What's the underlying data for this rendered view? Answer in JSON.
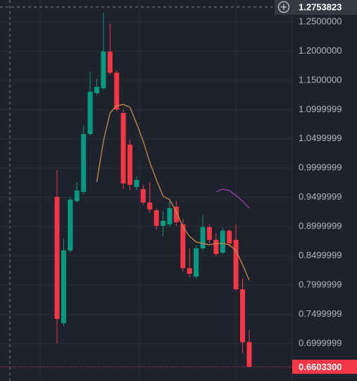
{
  "chart_data": {
    "type": "candlestick",
    "up_color": "#089981",
    "down_color": "#f23645",
    "grid": true,
    "ylim": [
      0.636,
      1.2874
    ],
    "yticks": [
      {
        "value": 1.25,
        "label": "1.2500000"
      },
      {
        "value": 1.2,
        "label": "1.2000000"
      },
      {
        "value": 1.15,
        "label": "1.1500000"
      },
      1.0999999,
      1.0499999,
      0.9999999,
      0.9499999,
      0.8999999,
      0.8499999,
      0.7999999,
      0.7499999,
      0.6999999
    ],
    "open": [
      0.9508,
      0.7349,
      0.8592,
      0.9436,
      0.9593,
      1.0582,
      1.1282,
      1.1366,
      1.1993,
      1.1631,
      1.0944,
      1.0401,
      0.9677,
      0.9641,
      0.9412,
      0.9279,
      0.9014,
      0.9038,
      0.934,
      0.9038,
      0.829,
      0.8145,
      0.8628,
      0.899,
      0.8773,
      0.8555,
      0.8929,
      0.8773,
      0.7928,
      0.7024
    ],
    "high": [
      0.9967,
      0.8797,
      0.9508,
      0.9762,
      1.0727,
      1.1644,
      1.1523,
      1.2657,
      1.2476,
      1.1668,
      1.1004,
      1.0486,
      0.9858,
      0.9713,
      0.9762,
      0.9315,
      0.9255,
      0.9436,
      0.9436,
      0.9134,
      0.8628,
      0.8676,
      0.9195,
      0.9038,
      0.8893,
      0.8978,
      0.8953,
      0.9038,
      0.8109,
      0.7229
    ],
    "low": [
      0.6999,
      0.7301,
      0.8555,
      0.9412,
      0.9557,
      1.0558,
      1.1245,
      1.1342,
      1.1595,
      1.0968,
      0.9641,
      0.9617,
      0.9617,
      0.9376,
      0.9231,
      0.8953,
      0.8833,
      0.899,
      0.9014,
      0.823,
      0.8133,
      0.8109,
      0.8592,
      0.8712,
      0.8495,
      0.8531,
      0.8652,
      0.7904,
      0.6842,
      0.6603
    ],
    "close": [
      0.7421,
      0.8592,
      0.946,
      0.9617,
      1.0582,
      1.1306,
      1.139,
      1.1993,
      1.1631,
      1.1004,
      0.9738,
      0.9713,
      0.9798,
      0.9412,
      0.9291,
      0.9014,
      0.9098,
      0.9315,
      0.9074,
      0.829,
      0.8193,
      0.8628,
      0.899,
      0.8773,
      0.8531,
      0.8929,
      0.8712,
      0.7928,
      0.7024,
      0.6603
    ],
    "lines": [
      {
        "color": "#c98a4b",
        "values": [
          null,
          null,
          null,
          null,
          null,
          null,
          0.9762,
          1.0461,
          1.0944,
          1.1065,
          1.1089,
          1.104,
          1.0763,
          1.0461,
          1.0099,
          0.9798,
          0.952,
          0.946,
          0.9255,
          0.899,
          0.8833,
          0.8736,
          0.8712,
          0.8688,
          0.8712,
          0.8712,
          0.8688,
          0.8592,
          0.835,
          0.8085
        ]
      },
      {
        "color": "#9c3fb0",
        "values": [
          null,
          null,
          null,
          null,
          null,
          null,
          null,
          null,
          null,
          null,
          null,
          null,
          null,
          null,
          null,
          null,
          null,
          null,
          null,
          null,
          null,
          null,
          null,
          null,
          0.9593,
          0.9641,
          0.9617,
          0.9532,
          0.9436,
          0.9315
        ]
      }
    ],
    "crosshair_price": 1.2753823,
    "last_price": {
      "value": 0.66033,
      "label": "0.6603300"
    }
  }
}
